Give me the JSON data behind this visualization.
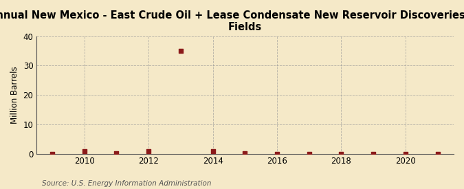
{
  "title": "Annual New Mexico - East Crude Oil + Lease Condensate New Reservoir Discoveries in Old\nFields",
  "ylabel": "Million Barrels",
  "source": "Source: U.S. Energy Information Administration",
  "background_color": "#f5e9c8",
  "years": [
    2009,
    2010,
    2011,
    2012,
    2013,
    2014,
    2015,
    2016,
    2017,
    2018,
    2019,
    2020,
    2021
  ],
  "values": [
    0.0,
    0.85,
    0.1,
    0.9,
    35.0,
    0.85,
    0.2,
    0.0,
    0.0,
    0.0,
    0.0,
    0.0,
    0.0
  ],
  "marker_color": "#8b1a1a",
  "xlim": [
    2008.5,
    2021.5
  ],
  "ylim": [
    0,
    40
  ],
  "yticks": [
    0,
    10,
    20,
    30,
    40
  ],
  "xticks": [
    2010,
    2012,
    2014,
    2016,
    2018,
    2020
  ],
  "grid_color": "#999999",
  "title_fontsize": 10.5,
  "label_fontsize": 8.5,
  "tick_fontsize": 8.5,
  "source_fontsize": 7.5,
  "marker_size": 4
}
